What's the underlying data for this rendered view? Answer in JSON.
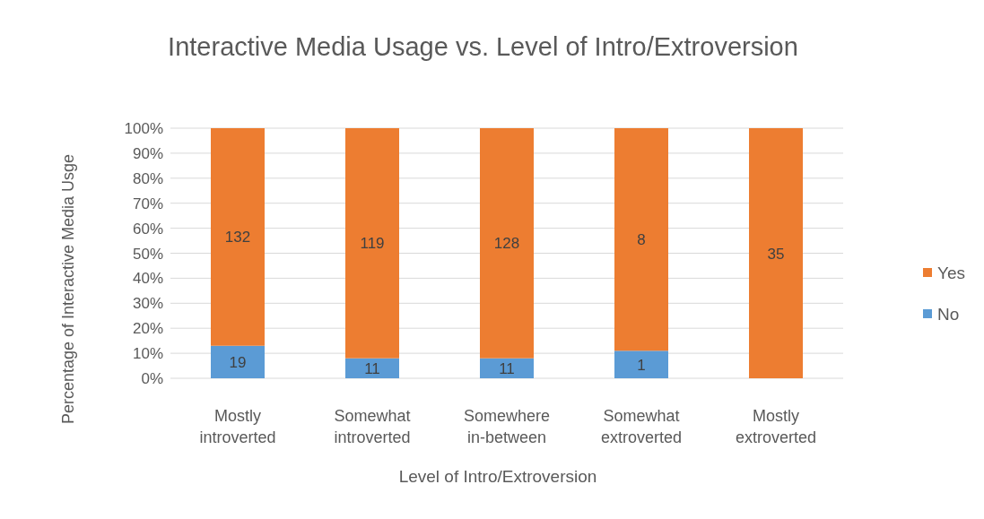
{
  "chart_data": {
    "type": "bar",
    "stacked": true,
    "title": "Interactive Media Usage vs. Level of Intro/Extroversion",
    "xlabel": "Level of Intro/Extroversion",
    "ylabel": "Percentage of Interactive Media Usge",
    "categories": [
      "Mostly introverted",
      "Somewhat introverted",
      "Somewhere in-between",
      "Somewhat extroverted",
      "Mostly extroverted"
    ],
    "series": [
      {
        "name": "No",
        "color": "#5b9bd5",
        "values": [
          13,
          8,
          8,
          11,
          0
        ]
      },
      {
        "name": "Yes",
        "color": "#ed7d31",
        "values": [
          87,
          92,
          92,
          89,
          100
        ]
      }
    ],
    "annotations": [
      "19",
      "11",
      "11",
      "1",
      "132",
      "119",
      "128",
      "8",
      "35"
    ],
    "ylim": [
      0,
      100
    ],
    "yticks": [
      {
        "value": 0,
        "label": "0%"
      },
      {
        "value": 10,
        "label": "10%"
      },
      {
        "value": 20,
        "label": "20%"
      },
      {
        "value": 30,
        "label": "30%"
      },
      {
        "value": 40,
        "label": "40%"
      },
      {
        "value": 50,
        "label": "50%"
      },
      {
        "value": 60,
        "label": "60%"
      },
      {
        "value": 70,
        "label": "70%"
      },
      {
        "value": 80,
        "label": "80%"
      },
      {
        "value": 90,
        "label": "90%"
      },
      {
        "value": 100,
        "label": "100%"
      }
    ],
    "grid": "y",
    "legend": "right"
  }
}
